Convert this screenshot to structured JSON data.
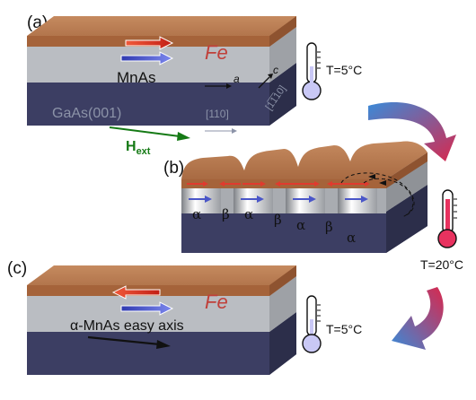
{
  "panels": {
    "a": "(a)",
    "b": "(b)",
    "c": "(c)"
  },
  "panel_a": {
    "top_layer": "Fe",
    "middle_layer": "MnAs",
    "substrate": "GaAs(001)",
    "axis_a": "a",
    "axis_c": "c",
    "dir_110": "[110]",
    "dir_1bar10": "[1̅1̅10]",
    "field_label_main": "H",
    "field_label_sub": "ext",
    "temperature": "T=5°C"
  },
  "panel_b": {
    "phases": [
      "α",
      "β",
      "α",
      "β",
      "α",
      "β",
      "α"
    ],
    "temperature": "T=20°C"
  },
  "panel_c": {
    "top_layer": "Fe",
    "easy_axis_label": "α-MnAs easy axis",
    "temperature": "T=5°C"
  },
  "colors": {
    "fe_top": "#b7784f",
    "fe_front": "#a8663c",
    "mnas": "#b9bcc1",
    "gaas": "#3c3e63",
    "arrow_red": "#e03a2e",
    "arrow_blue": "#4a56c8",
    "field_green": "#157a15",
    "thermo_cold": "#c9c8f5",
    "thermo_hot": "#e8325f"
  },
  "icons": [
    "thermometer-cold-icon",
    "thermometer-hot-icon",
    "curved-arrow-icon"
  ]
}
